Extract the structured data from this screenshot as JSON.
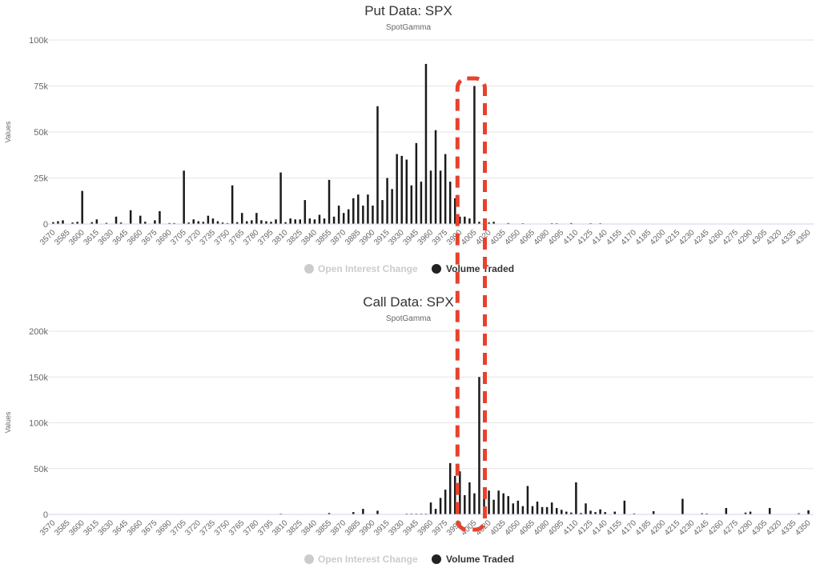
{
  "chart_data": [
    {
      "type": "bar",
      "title": "Put Data: SPX",
      "subtitle": "SpotGamma",
      "ylabel": "Values",
      "ylim": [
        0,
        100000
      ],
      "yticks": [
        "0",
        "25k",
        "50k",
        "75k",
        "100k"
      ],
      "xlim": [
        3568,
        4352
      ],
      "xticks": [
        3570,
        3585,
        3600,
        3615,
        3630,
        3645,
        3660,
        3675,
        3690,
        3705,
        3720,
        3735,
        3750,
        3765,
        3780,
        3795,
        3810,
        3825,
        3840,
        3855,
        3870,
        3885,
        3900,
        3915,
        3930,
        3945,
        3960,
        3975,
        3990,
        4005,
        4020,
        4035,
        4050,
        4065,
        4080,
        4095,
        4110,
        4125,
        4140,
        4155,
        4170,
        4185,
        4200,
        4215,
        4230,
        4245,
        4260,
        4275,
        4290,
        4305,
        4320,
        4335,
        4350
      ],
      "legend": [
        {
          "name": "Open Interest Change",
          "active": false
        },
        {
          "name": "Volume Traded",
          "active": true
        }
      ],
      "series": [
        {
          "name": "Volume Traded",
          "points": [
            [
              3570,
              1000
            ],
            [
              3575,
              1500
            ],
            [
              3580,
              2000
            ],
            [
              3590,
              800
            ],
            [
              3595,
              1200
            ],
            [
              3600,
              18000
            ],
            [
              3610,
              1000
            ],
            [
              3615,
              2500
            ],
            [
              3625,
              600
            ],
            [
              3635,
              4000
            ],
            [
              3640,
              800
            ],
            [
              3650,
              7500
            ],
            [
              3660,
              4500
            ],
            [
              3665,
              1200
            ],
            [
              3675,
              2000
            ],
            [
              3680,
              7000
            ],
            [
              3690,
              500
            ],
            [
              3695,
              500
            ],
            [
              3705,
              29000
            ],
            [
              3710,
              800
            ],
            [
              3715,
              2500
            ],
            [
              3720,
              1500
            ],
            [
              3725,
              1200
            ],
            [
              3730,
              4500
            ],
            [
              3735,
              3000
            ],
            [
              3740,
              1500
            ],
            [
              3745,
              800
            ],
            [
              3750,
              500
            ],
            [
              3755,
              21000
            ],
            [
              3760,
              1000
            ],
            [
              3765,
              6000
            ],
            [
              3770,
              1500
            ],
            [
              3775,
              2000
            ],
            [
              3780,
              6000
            ],
            [
              3785,
              2000
            ],
            [
              3790,
              1500
            ],
            [
              3795,
              1200
            ],
            [
              3800,
              2500
            ],
            [
              3805,
              28000
            ],
            [
              3810,
              1000
            ],
            [
              3815,
              3000
            ],
            [
              3820,
              2500
            ],
            [
              3825,
              2500
            ],
            [
              3830,
              13000
            ],
            [
              3835,
              3000
            ],
            [
              3840,
              2500
            ],
            [
              3845,
              5000
            ],
            [
              3850,
              3000
            ],
            [
              3855,
              24000
            ],
            [
              3860,
              4000
            ],
            [
              3865,
              10000
            ],
            [
              3870,
              6000
            ],
            [
              3875,
              8000
            ],
            [
              3880,
              14000
            ],
            [
              3885,
              16000
            ],
            [
              3890,
              10000
            ],
            [
              3895,
              16000
            ],
            [
              3900,
              10000
            ],
            [
              3905,
              64000
            ],
            [
              3910,
              13000
            ],
            [
              3915,
              25000
            ],
            [
              3920,
              19000
            ],
            [
              3925,
              38000
            ],
            [
              3930,
              37000
            ],
            [
              3935,
              35000
            ],
            [
              3940,
              21000
            ],
            [
              3945,
              44000
            ],
            [
              3950,
              23000
            ],
            [
              3955,
              87000
            ],
            [
              3960,
              29000
            ],
            [
              3965,
              51000
            ],
            [
              3970,
              29000
            ],
            [
              3975,
              38000
            ],
            [
              3980,
              23000
            ],
            [
              3985,
              14000
            ],
            [
              3990,
              4000
            ],
            [
              3995,
              4000
            ],
            [
              4000,
              3000
            ],
            [
              4005,
              75000
            ],
            [
              4010,
              1200
            ],
            [
              4015,
              1200
            ],
            [
              4020,
              800
            ],
            [
              4025,
              1200
            ],
            [
              4040,
              500
            ],
            [
              4055,
              400
            ],
            [
              4085,
              400
            ],
            [
              4090,
              400
            ],
            [
              4105,
              500
            ],
            [
              4125,
              400
            ],
            [
              4135,
              400
            ]
          ]
        }
      ]
    },
    {
      "type": "bar",
      "title": "Call Data: SPX",
      "subtitle": "SpotGamma",
      "ylabel": "Values",
      "ylim": [
        0,
        200000
      ],
      "yticks": [
        "0",
        "50k",
        "100k",
        "150k",
        "200k"
      ],
      "xlim": [
        3568,
        4352
      ],
      "xticks": [
        3570,
        3585,
        3600,
        3615,
        3630,
        3645,
        3660,
        3675,
        3690,
        3705,
        3720,
        3735,
        3750,
        3765,
        3780,
        3795,
        3810,
        3825,
        3840,
        3855,
        3870,
        3885,
        3900,
        3915,
        3930,
        3945,
        3960,
        3975,
        3990,
        4005,
        4020,
        4035,
        4050,
        4065,
        4080,
        4095,
        4110,
        4125,
        4140,
        4155,
        4170,
        4185,
        4200,
        4215,
        4230,
        4245,
        4260,
        4275,
        4290,
        4305,
        4320,
        4335,
        4350
      ],
      "legend": [
        {
          "name": "Open Interest Change",
          "active": false
        },
        {
          "name": "Volume Traded",
          "active": true
        }
      ],
      "series": [
        {
          "name": "Volume Traded",
          "points": [
            [
              3805,
              800
            ],
            [
              3855,
              1500
            ],
            [
              3880,
              2500
            ],
            [
              3890,
              6000
            ],
            [
              3905,
              4000
            ],
            [
              3935,
              800
            ],
            [
              3940,
              800
            ],
            [
              3945,
              800
            ],
            [
              3950,
              800
            ],
            [
              3955,
              800
            ],
            [
              3960,
              13000
            ],
            [
              3965,
              6000
            ],
            [
              3970,
              18000
            ],
            [
              3975,
              27000
            ],
            [
              3980,
              56000
            ],
            [
              3985,
              42000
            ],
            [
              3990,
              47000
            ],
            [
              3995,
              21000
            ],
            [
              4000,
              35000
            ],
            [
              4005,
              23000
            ],
            [
              4010,
              150000
            ],
            [
              4015,
              19000
            ],
            [
              4020,
              26000
            ],
            [
              4025,
              16000
            ],
            [
              4030,
              26000
            ],
            [
              4035,
              23000
            ],
            [
              4040,
              20000
            ],
            [
              4045,
              12000
            ],
            [
              4050,
              15000
            ],
            [
              4055,
              9000
            ],
            [
              4060,
              31000
            ],
            [
              4065,
              9000
            ],
            [
              4070,
              14000
            ],
            [
              4075,
              8000
            ],
            [
              4080,
              8000
            ],
            [
              4085,
              13000
            ],
            [
              4090,
              7000
            ],
            [
              4095,
              5000
            ],
            [
              4100,
              3000
            ],
            [
              4105,
              2000
            ],
            [
              4110,
              35000
            ],
            [
              4115,
              1500
            ],
            [
              4120,
              12000
            ],
            [
              4125,
              4000
            ],
            [
              4130,
              2500
            ],
            [
              4135,
              5500
            ],
            [
              4140,
              2500
            ],
            [
              4150,
              3000
            ],
            [
              4160,
              15000
            ],
            [
              4170,
              1000
            ],
            [
              4190,
              3500
            ],
            [
              4220,
              17000
            ],
            [
              4240,
              1200
            ],
            [
              4245,
              1000
            ],
            [
              4265,
              7000
            ],
            [
              4285,
              2000
            ],
            [
              4290,
              3000
            ],
            [
              4310,
              7000
            ],
            [
              4340,
              1200
            ],
            [
              4350,
              4500
            ]
          ]
        }
      ]
    }
  ],
  "annotation": {
    "type": "dashed-rounded-rectangle",
    "color": "#e8412c",
    "x_range": [
      3990,
      4015
    ]
  }
}
